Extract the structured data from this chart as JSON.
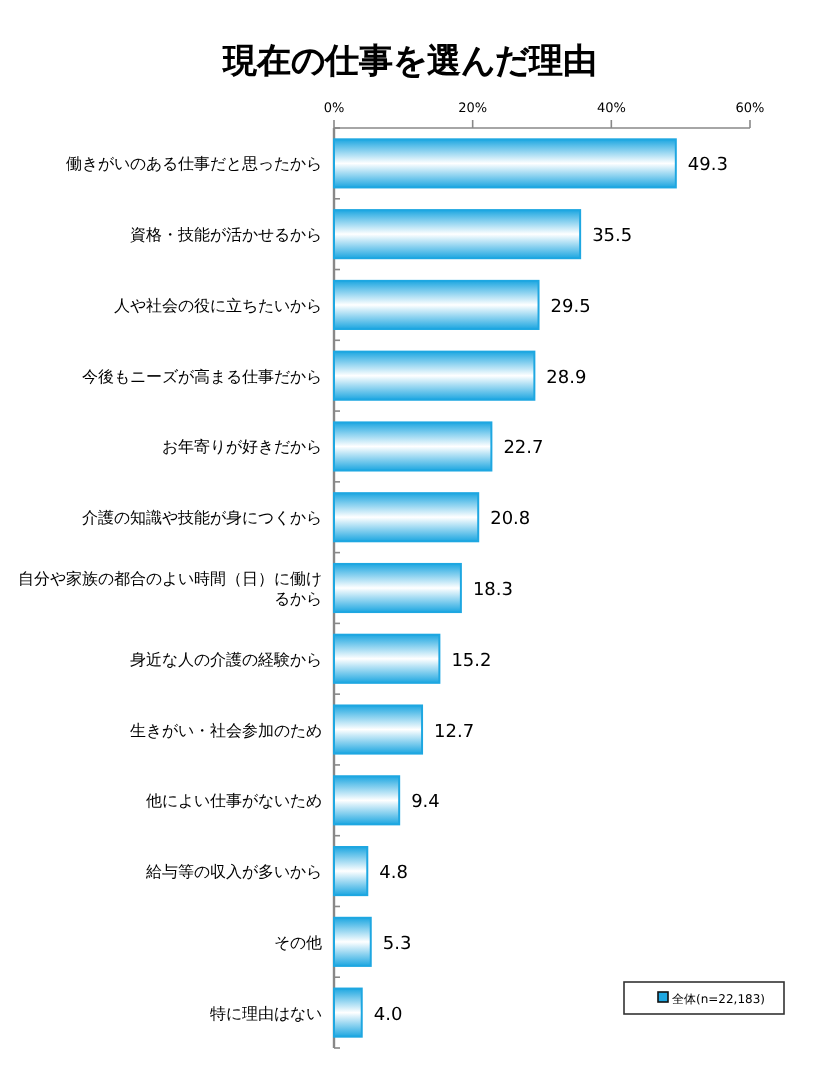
{
  "chart_data": {
    "type": "bar",
    "orientation": "horizontal",
    "title": "現在の仕事を選んだ理由",
    "categories": [
      "働きがいのある仕事だと思ったから",
      "資格・技能が活かせるから",
      "人や社会の役に立ちたいから",
      "今後もニーズが高まる仕事だから",
      "お年寄りが好きだから",
      "介護の知識や技能が身につくから",
      "自分や家族の都合のよい時間（日）に働けるから",
      "身近な人の介護の経験から",
      "生きがい・社会参加のため",
      "他によい仕事がないため",
      "給与等の収入が多いから",
      "その他",
      "特に理由はない"
    ],
    "series": [
      {
        "name": "全体(n=22,183)",
        "color": "#1ea7e1",
        "values": [
          49.3,
          35.5,
          29.5,
          28.9,
          22.7,
          20.8,
          18.3,
          15.2,
          12.7,
          9.4,
          4.8,
          5.3,
          4.0
        ],
        "value_labels": [
          "49.3",
          "35.5",
          "29.5",
          "28.9",
          "22.7",
          "20.8",
          "18.3",
          "15.2",
          "12.7",
          "9.4",
          "4.8",
          "5.3",
          "4.0"
        ]
      }
    ],
    "xlim": [
      0,
      60
    ],
    "xticks": [
      {
        "value": 0,
        "label": "0%"
      },
      {
        "value": 20,
        "label": "20%"
      },
      {
        "value": 40,
        "label": "40%"
      },
      {
        "value": 60,
        "label": "60%"
      }
    ],
    "legend": "bottom right"
  }
}
